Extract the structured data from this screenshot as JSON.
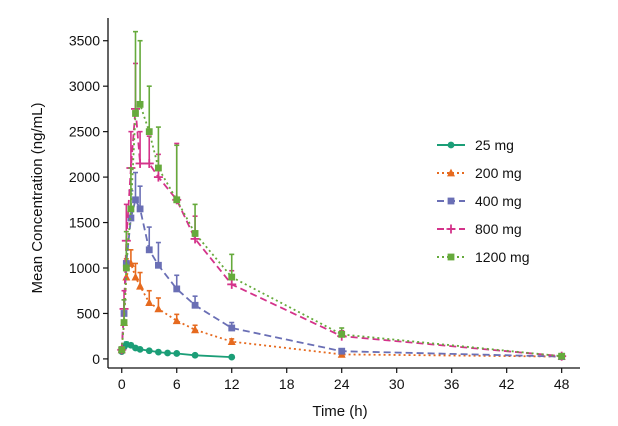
{
  "chart_data": {
    "type": "line",
    "title": "",
    "xlabel": "Time (h)",
    "ylabel": "Mean Concentration (ng/mL)",
    "xlim": [
      -1.5,
      50
    ],
    "ylim": [
      -100,
      3750
    ],
    "xticks": [
      0,
      6,
      12,
      18,
      24,
      30,
      36,
      42,
      48
    ],
    "yticks": [
      0,
      500,
      1000,
      1500,
      2000,
      2500,
      3000,
      3500
    ],
    "grid": false,
    "legend_position": "right",
    "series": [
      {
        "name": "25 mg",
        "color": "#1b9e77",
        "marker": "circle",
        "line": "solid",
        "points": [
          {
            "x": 0,
            "y": 80,
            "err": 15
          },
          {
            "x": 0.25,
            "y": 130,
            "err": 20
          },
          {
            "x": 0.5,
            "y": 160,
            "err": 25
          },
          {
            "x": 1,
            "y": 150,
            "err": 20
          },
          {
            "x": 1.5,
            "y": 120,
            "err": 15
          },
          {
            "x": 2,
            "y": 105,
            "err": 12
          },
          {
            "x": 3,
            "y": 90,
            "err": 10
          },
          {
            "x": 4,
            "y": 75,
            "err": 8
          },
          {
            "x": 5,
            "y": 65,
            "err": 7
          },
          {
            "x": 6,
            "y": 60,
            "err": 6
          },
          {
            "x": 8,
            "y": 40,
            "err": 5
          },
          {
            "x": 12,
            "y": 20,
            "err": 4
          }
        ]
      },
      {
        "name": "200 mg",
        "color": "#e66a1f",
        "marker": "triangle",
        "line": "dotted",
        "points": [
          {
            "x": 0,
            "y": 100,
            "err": 30
          },
          {
            "x": 0.25,
            "y": 400,
            "err": 100
          },
          {
            "x": 0.5,
            "y": 900,
            "err": 200
          },
          {
            "x": 1,
            "y": 1050,
            "err": 150
          },
          {
            "x": 1.5,
            "y": 900,
            "err": 150
          },
          {
            "x": 2,
            "y": 800,
            "err": 150
          },
          {
            "x": 3,
            "y": 620,
            "err": 130
          },
          {
            "x": 4,
            "y": 550,
            "err": 120
          },
          {
            "x": 6,
            "y": 420,
            "err": 70
          },
          {
            "x": 8,
            "y": 320,
            "err": 50
          },
          {
            "x": 12,
            "y": 190,
            "err": 30
          },
          {
            "x": 24,
            "y": 50,
            "err": 10
          },
          {
            "x": 48,
            "y": 25,
            "err": 5
          }
        ]
      },
      {
        "name": "400 mg",
        "color": "#6a6fb5",
        "marker": "square",
        "line": "dashed",
        "points": [
          {
            "x": 0,
            "y": 100,
            "err": 30
          },
          {
            "x": 0.25,
            "y": 500,
            "err": 150
          },
          {
            "x": 0.5,
            "y": 1050,
            "err": 250
          },
          {
            "x": 1,
            "y": 1550,
            "err": 300
          },
          {
            "x": 1.5,
            "y": 1750,
            "err": 300
          },
          {
            "x": 2,
            "y": 1650,
            "err": 250
          },
          {
            "x": 3,
            "y": 1200,
            "err": 250
          },
          {
            "x": 4,
            "y": 1030,
            "err": 250
          },
          {
            "x": 6,
            "y": 770,
            "err": 150
          },
          {
            "x": 8,
            "y": 590,
            "err": 100
          },
          {
            "x": 12,
            "y": 340,
            "err": 60
          },
          {
            "x": 24,
            "y": 85,
            "err": 20
          },
          {
            "x": 48,
            "y": 25,
            "err": 8
          }
        ]
      },
      {
        "name": "800 mg",
        "color": "#d4338a",
        "marker": "plus",
        "line": "dashed",
        "points": [
          {
            "x": 0,
            "y": 100,
            "err": 30
          },
          {
            "x": 0.25,
            "y": 550,
            "err": 200
          },
          {
            "x": 0.5,
            "y": 1300,
            "err": 400
          },
          {
            "x": 1,
            "y": 2100,
            "err": 400
          },
          {
            "x": 1.5,
            "y": 2750,
            "err": 500
          },
          {
            "x": 2,
            "y": 2150,
            "err": 350
          },
          {
            "x": 3,
            "y": 2150,
            "err": 300
          },
          {
            "x": 4,
            "y": 2000,
            "err": 250
          },
          {
            "x": 6,
            "y": 1750,
            "err": 620
          },
          {
            "x": 8,
            "y": 1320,
            "err": 250
          },
          {
            "x": 12,
            "y": 820,
            "err": 150
          },
          {
            "x": 24,
            "y": 250,
            "err": 60
          },
          {
            "x": 48,
            "y": 30,
            "err": 10
          }
        ]
      },
      {
        "name": "1200 mg",
        "color": "#66aa3c",
        "marker": "square",
        "line": "dotted",
        "points": [
          {
            "x": 0,
            "y": 100,
            "err": 30
          },
          {
            "x": 0.25,
            "y": 400,
            "err": 250
          },
          {
            "x": 0.5,
            "y": 1000,
            "err": 400
          },
          {
            "x": 1,
            "y": 1650,
            "err": 450
          },
          {
            "x": 1.5,
            "y": 2700,
            "err": 900
          },
          {
            "x": 2,
            "y": 2800,
            "err": 700
          },
          {
            "x": 3,
            "y": 2500,
            "err": 500
          },
          {
            "x": 4,
            "y": 2100,
            "err": 450
          },
          {
            "x": 6,
            "y": 1750,
            "err": 600
          },
          {
            "x": 8,
            "y": 1380,
            "err": 320
          },
          {
            "x": 12,
            "y": 900,
            "err": 250
          },
          {
            "x": 24,
            "y": 270,
            "err": 70
          },
          {
            "x": 48,
            "y": 30,
            "err": 10
          }
        ]
      }
    ]
  }
}
